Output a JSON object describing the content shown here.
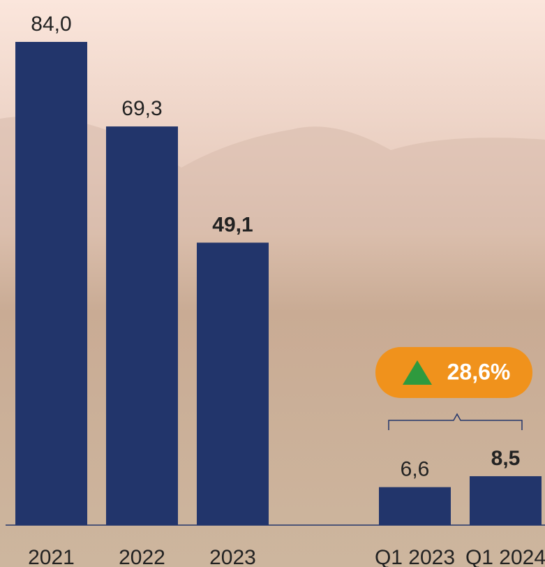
{
  "chart_data": {
    "type": "bar",
    "categories": [
      "2021",
      "2022",
      "2023",
      "Q1 2023",
      "Q1 2024"
    ],
    "values": [
      84.0,
      69.3,
      49.1,
      6.6,
      8.5
    ],
    "value_labels": [
      "84,0",
      "69,3",
      "49,1",
      "6,6",
      "8,5"
    ],
    "color": "#22356b",
    "ylim": [
      0,
      84
    ],
    "annotation": "28,6%"
  }
}
